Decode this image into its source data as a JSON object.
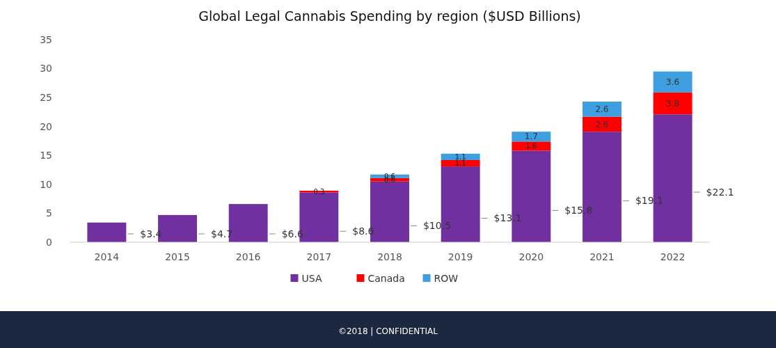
{
  "chart_data": {
    "type": "bar",
    "stacked": true,
    "title": "Global Legal Cannabis Spending by region ($USD Billions)",
    "categories": [
      "2014",
      "2015",
      "2016",
      "2017",
      "2018",
      "2019",
      "2020",
      "2021",
      "2022"
    ],
    "series": [
      {
        "name": "USA",
        "color": "#7030a0",
        "values": [
          3.4,
          4.7,
          6.6,
          8.6,
          10.5,
          13.1,
          15.8,
          19.1,
          22.1
        ],
        "value_labels": [
          "$3.4",
          "$4.7",
          "$6.6",
          "$8.6",
          "$10.5",
          "$13.1",
          "$15.8",
          "$19.1",
          "$22.1"
        ]
      },
      {
        "name": "Canada",
        "color": "#ff0000",
        "values": [
          null,
          null,
          null,
          0.3,
          0.6,
          1.1,
          1.6,
          2.6,
          3.8
        ],
        "value_labels": [
          null,
          null,
          null,
          "0.3",
          "0.6",
          "1.1",
          "1.6",
          "2.6",
          "3.8"
        ]
      },
      {
        "name": "ROW",
        "color": "#3d9ee0",
        "values": [
          null,
          null,
          null,
          null,
          0.6,
          1.1,
          1.7,
          2.6,
          3.6
        ],
        "value_labels": [
          null,
          null,
          null,
          null,
          "0.6",
          "1.1",
          "1.7",
          "2.6",
          "3.6"
        ]
      }
    ],
    "ylim": [
      0,
      35
    ],
    "yticks": [
      0,
      5,
      10,
      15,
      20,
      25,
      30,
      35
    ],
    "grid": false,
    "legend": "bottom",
    "annotations": [
      "©2018 | CONFIDENTIAL"
    ]
  }
}
